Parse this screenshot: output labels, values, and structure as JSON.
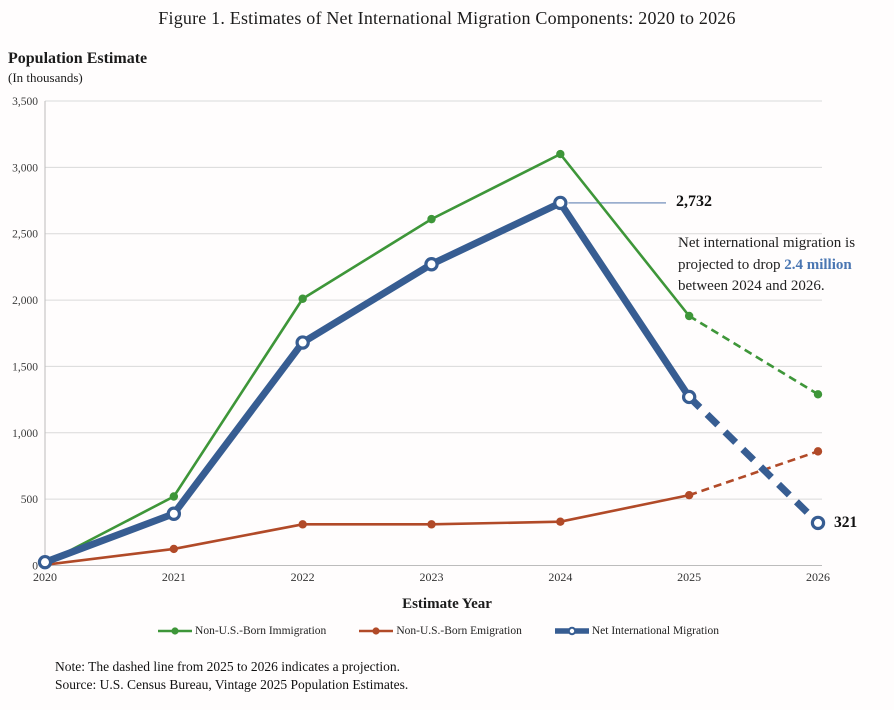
{
  "figure": {
    "title": "Figure 1. Estimates of Net International Migration Components: 2020 to 2026",
    "y_axis_title": "Population Estimate",
    "y_axis_subtitle": "(In thousands)",
    "x_axis_title": "Estimate Year",
    "note": "Note: The dashed line from 2025 to 2026 indicates a projection.",
    "source": "Source: U.S. Census Bureau, Vintage 2025 Population Estimates."
  },
  "annotations": {
    "peak_label": "2,732",
    "end_label": "321",
    "callout": {
      "line1": "Net international migration is",
      "line2_pre": "projected to drop ",
      "line2_highlight": "2.4 million",
      "line3": "between 2024 and 2026.",
      "highlight_color": "#4a76b2"
    },
    "leader_color": "#8ba3c7"
  },
  "chart_data": {
    "type": "line",
    "x": [
      2020,
      2021,
      2022,
      2023,
      2024,
      2025,
      2026
    ],
    "series": [
      {
        "name": "Non-U.S.-Born Immigration",
        "color": "#3e9639",
        "marker": "filled",
        "values": [
          15,
          520,
          2010,
          2610,
          3100,
          1880,
          1290
        ]
      },
      {
        "name": "Non-U.S.-Born Emigration",
        "color": "#b14a28",
        "marker": "filled",
        "values": [
          5,
          125,
          310,
          310,
          330,
          530,
          860
        ]
      },
      {
        "name": "Net International Migration",
        "color": "#375d92",
        "marker": "open",
        "values": [
          25,
          390,
          1680,
          2270,
          2732,
          1270,
          321
        ]
      }
    ],
    "ylim": [
      0,
      3500
    ],
    "ytick_step": 500,
    "projection_from_x": 2025,
    "grid": true,
    "legend_position": "bottom",
    "annotated_points": {
      "peak": {
        "series": "Net International Migration",
        "x": 2024
      },
      "end": {
        "series": "Net International Migration",
        "x": 2026
      }
    }
  }
}
